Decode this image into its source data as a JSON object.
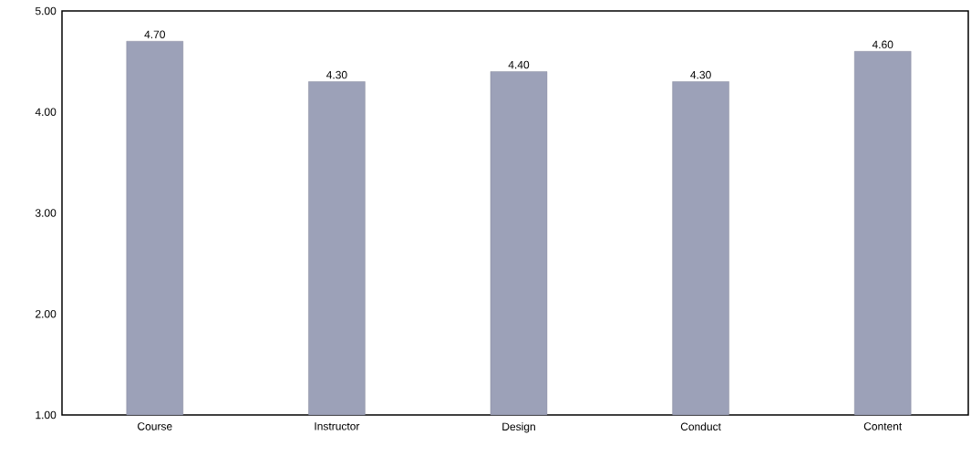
{
  "chart_data": {
    "type": "bar",
    "categories": [
      "Course",
      "Instructor",
      "Design",
      "Conduct",
      "Content"
    ],
    "values": [
      4.7,
      4.3,
      4.4,
      4.3,
      4.6
    ],
    "value_labels": [
      "4.70",
      "4.30",
      "4.40",
      "4.30",
      "4.60"
    ],
    "color": "#9ca1b8",
    "ylim": [
      1,
      5
    ],
    "yticks": [
      {
        "value": 1,
        "label": "1.00"
      },
      {
        "value": 2,
        "label": "2.00"
      },
      {
        "value": 3,
        "label": "3.00"
      },
      {
        "value": 4,
        "label": "4.00"
      },
      {
        "value": 5,
        "label": "5.00"
      }
    ],
    "grid": false
  }
}
